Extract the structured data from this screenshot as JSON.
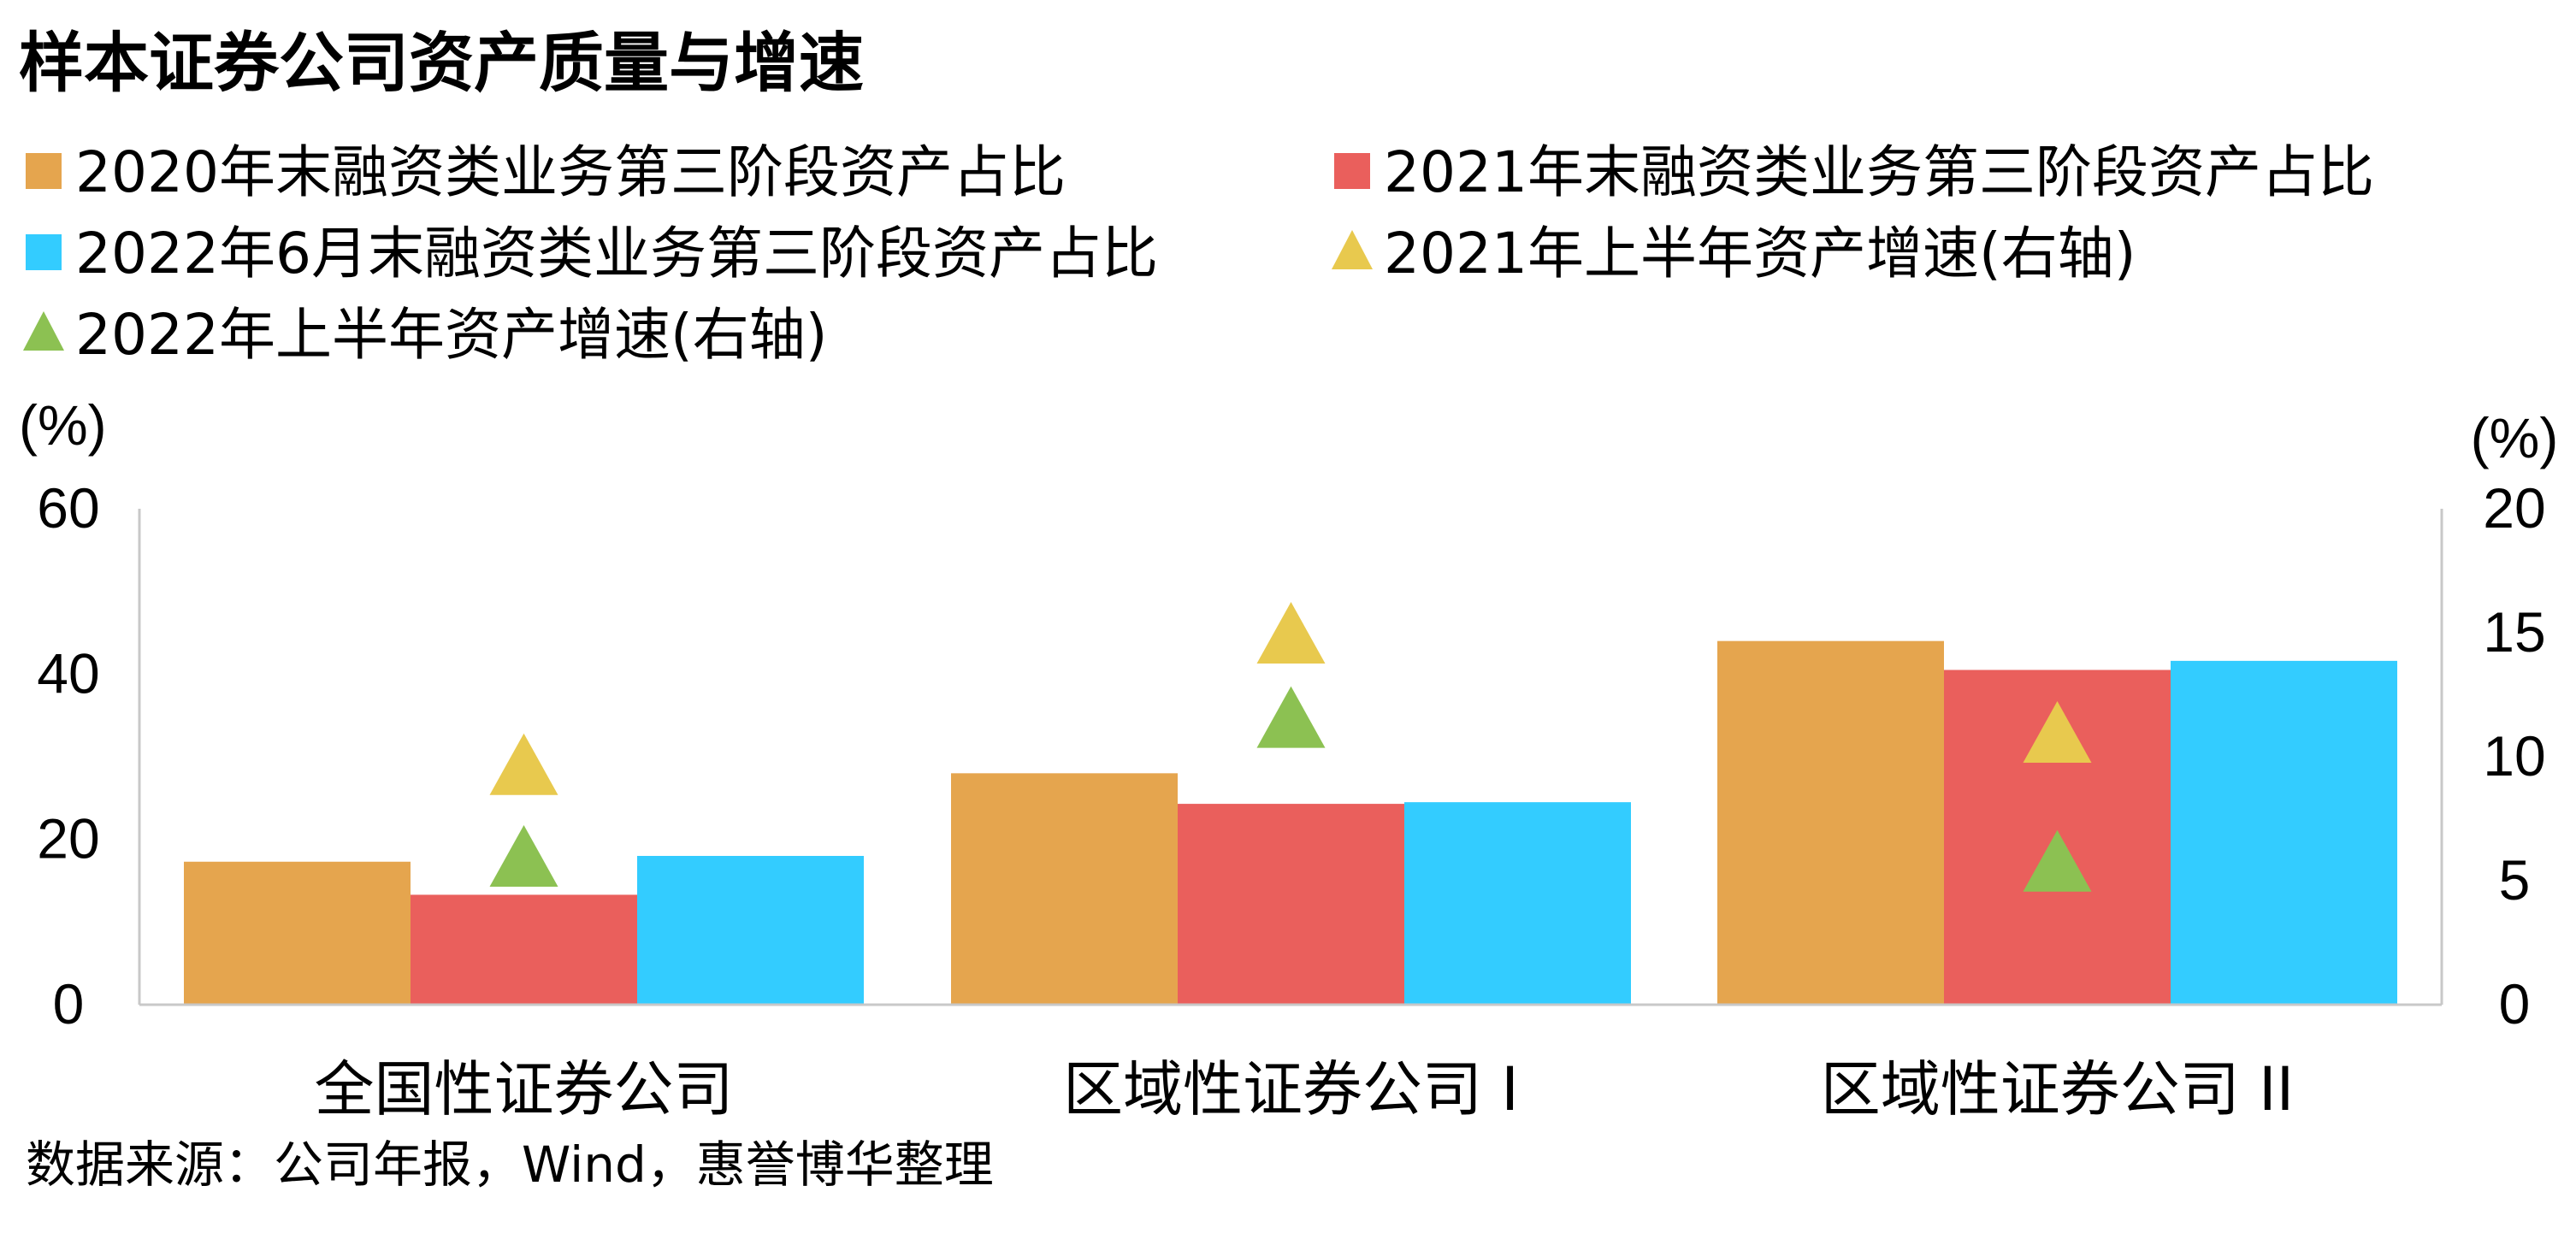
{
  "chart_data": {
    "type": "bar",
    "title": "样本证券公司资产质量与增速",
    "left_unit": "(%)",
    "right_unit": "(%)",
    "left_axis": {
      "min": 0,
      "max": 60,
      "ticks": [
        0,
        20,
        40,
        60
      ]
    },
    "right_axis": {
      "min": 0,
      "max": 20,
      "ticks": [
        0,
        5,
        10,
        15,
        20
      ]
    },
    "categories": [
      "全国性证券公司",
      "区域性证券公司 I",
      "区域性证券公司 II"
    ],
    "bar_series": [
      {
        "name": "2020年末融资类业务第三阶段资产占比",
        "color": "#E5A54E",
        "values": [
          17.3,
          28.0,
          44.0
        ]
      },
      {
        "name": "2021年末融资类业务第三阶段资产占比",
        "color": "#EA5F5C",
        "values": [
          13.3,
          24.3,
          40.5
        ]
      },
      {
        "name": "2022年6月末融资类业务第三阶段资产占比",
        "color": "#33CCFF",
        "values": [
          18.0,
          24.5,
          41.6
        ]
      }
    ],
    "marker_series": [
      {
        "name": "2021年上半年资产增速(右轴)",
        "color": "#E8C94E",
        "axis": "right",
        "bar_index": 1,
        "values": [
          9.7,
          15.0,
          11.0
        ]
      },
      {
        "name": "2022年上半年资产增速(右轴)",
        "color": "#8CC152",
        "axis": "right",
        "bar_index": 1,
        "values": [
          6.0,
          11.6,
          5.8
        ]
      }
    ],
    "source": "数据来源：公司年报，Wind，惠誉博华整理"
  }
}
